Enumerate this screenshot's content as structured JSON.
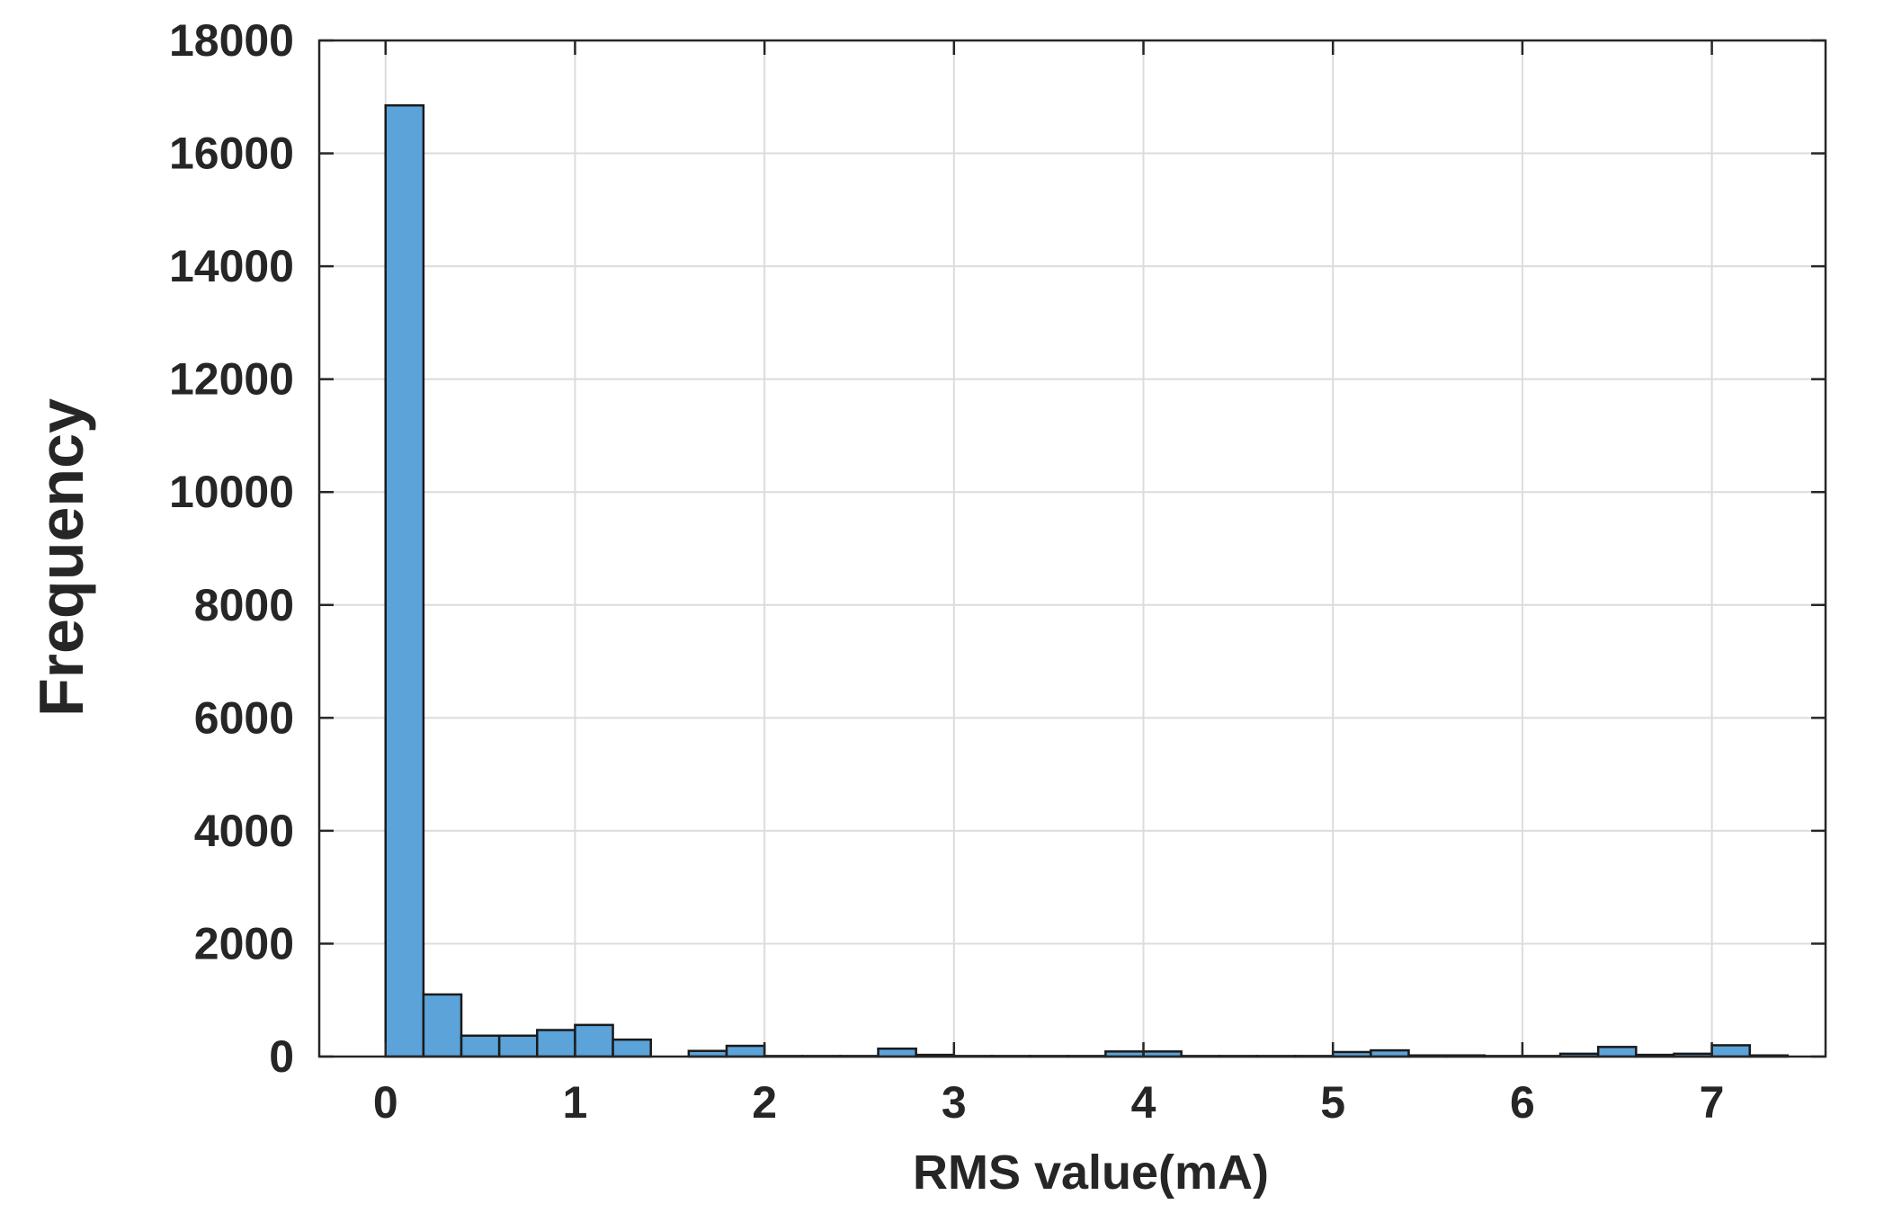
{
  "chart_data": {
    "type": "bar",
    "subtype": "histogram",
    "title": "",
    "xlabel": "RMS value(mA)",
    "ylabel": "Frequency",
    "xlim": [
      -0.35,
      7.6
    ],
    "ylim": [
      0,
      18000
    ],
    "xticks": [
      0,
      1,
      2,
      3,
      4,
      5,
      6,
      7
    ],
    "yticks": [
      0,
      2000,
      4000,
      6000,
      8000,
      10000,
      12000,
      14000,
      16000,
      18000
    ],
    "grid": true,
    "bin_width": 0.2,
    "bins": [
      {
        "x0": 0.0,
        "x1": 0.2,
        "value": 16850
      },
      {
        "x0": 0.2,
        "x1": 0.4,
        "value": 1100
      },
      {
        "x0": 0.4,
        "x1": 0.6,
        "value": 370
      },
      {
        "x0": 0.6,
        "x1": 0.8,
        "value": 370
      },
      {
        "x0": 0.8,
        "x1": 1.0,
        "value": 470
      },
      {
        "x0": 1.0,
        "x1": 1.2,
        "value": 560
      },
      {
        "x0": 1.2,
        "x1": 1.4,
        "value": 300
      },
      {
        "x0": 1.4,
        "x1": 1.6,
        "value": 0
      },
      {
        "x0": 1.6,
        "x1": 1.8,
        "value": 100
      },
      {
        "x0": 1.8,
        "x1": 2.0,
        "value": 190
      },
      {
        "x0": 2.0,
        "x1": 2.2,
        "value": 10
      },
      {
        "x0": 2.2,
        "x1": 2.4,
        "value": 10
      },
      {
        "x0": 2.4,
        "x1": 2.6,
        "value": 10
      },
      {
        "x0": 2.6,
        "x1": 2.8,
        "value": 140
      },
      {
        "x0": 2.8,
        "x1": 3.0,
        "value": 30
      },
      {
        "x0": 3.0,
        "x1": 3.2,
        "value": 10
      },
      {
        "x0": 3.2,
        "x1": 3.4,
        "value": 10
      },
      {
        "x0": 3.4,
        "x1": 3.6,
        "value": 10
      },
      {
        "x0": 3.6,
        "x1": 3.8,
        "value": 10
      },
      {
        "x0": 3.8,
        "x1": 4.0,
        "value": 90
      },
      {
        "x0": 4.0,
        "x1": 4.2,
        "value": 90
      },
      {
        "x0": 4.2,
        "x1": 4.4,
        "value": 10
      },
      {
        "x0": 4.4,
        "x1": 4.6,
        "value": 10
      },
      {
        "x0": 4.6,
        "x1": 4.8,
        "value": 10
      },
      {
        "x0": 4.8,
        "x1": 5.0,
        "value": 10
      },
      {
        "x0": 5.0,
        "x1": 5.2,
        "value": 80
      },
      {
        "x0": 5.2,
        "x1": 5.4,
        "value": 110
      },
      {
        "x0": 5.4,
        "x1": 5.6,
        "value": 20
      },
      {
        "x0": 5.6,
        "x1": 5.8,
        "value": 20
      },
      {
        "x0": 5.8,
        "x1": 6.0,
        "value": 10
      },
      {
        "x0": 6.0,
        "x1": 6.2,
        "value": 10
      },
      {
        "x0": 6.2,
        "x1": 6.4,
        "value": 50
      },
      {
        "x0": 6.4,
        "x1": 6.6,
        "value": 170
      },
      {
        "x0": 6.6,
        "x1": 6.8,
        "value": 30
      },
      {
        "x0": 6.8,
        "x1": 7.0,
        "value": 50
      },
      {
        "x0": 7.0,
        "x1": 7.2,
        "value": 200
      },
      {
        "x0": 7.2,
        "x1": 7.4,
        "value": 20
      }
    ],
    "colors": {
      "bar_fill": "#5ba3d9",
      "bar_edge": "#1a1a1a",
      "grid": "#dcdcdc",
      "axis": "#262626"
    }
  }
}
